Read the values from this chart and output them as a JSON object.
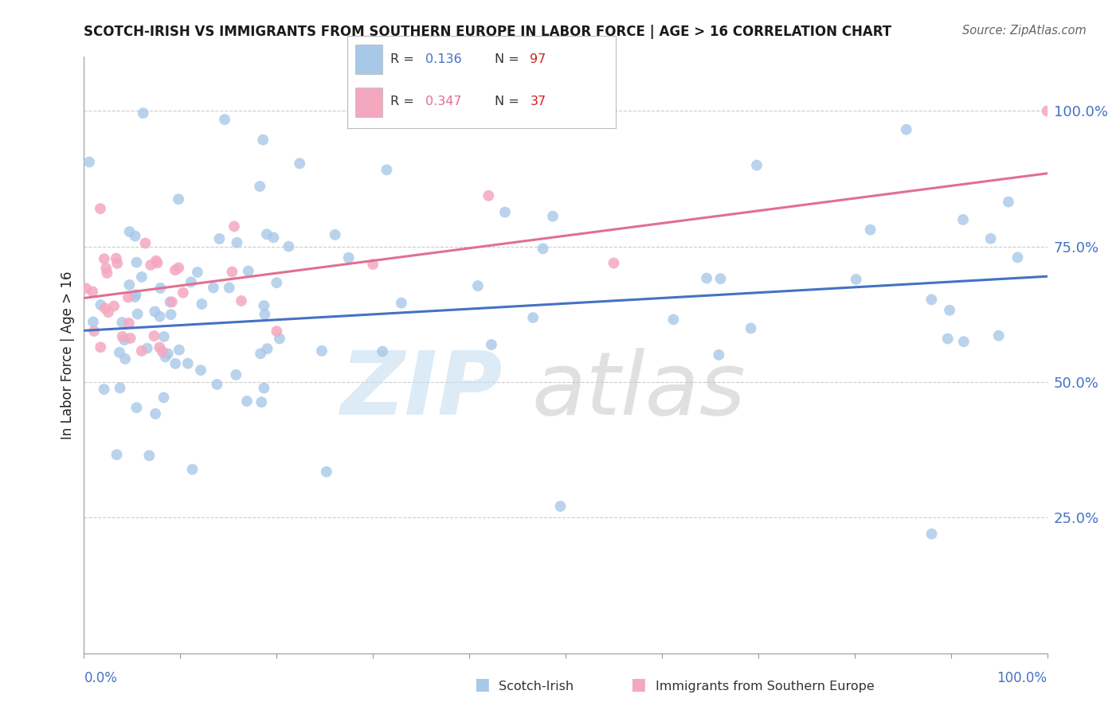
{
  "title": "SCOTCH-IRISH VS IMMIGRANTS FROM SOUTHERN EUROPE IN LABOR FORCE | AGE > 16 CORRELATION CHART",
  "source": "Source: ZipAtlas.com",
  "ylabel": "In Labor Force | Age > 16",
  "right_ytick_labels": [
    "100.0%",
    "75.0%",
    "50.0%",
    "25.0%"
  ],
  "right_ytick_vals": [
    1.0,
    0.75,
    0.5,
    0.25
  ],
  "legend_blue_R": "0.136",
  "legend_blue_N": "97",
  "legend_pink_R": "0.347",
  "legend_pink_N": "37",
  "background_color": "#ffffff",
  "grid_color": "#cccccc",
  "blue_marker_color": "#a8c8e8",
  "pink_marker_color": "#f4a8c0",
  "blue_line_color": "#4472c4",
  "pink_line_color": "#e07090",
  "right_tick_color": "#4472c4",
  "title_color": "#1a1a1a",
  "source_color": "#666666",
  "N_color": "#cc2222",
  "watermark_zip_color": "#c5dff0",
  "watermark_atlas_color": "#c8c8c8",
  "xlim": [
    0.0,
    1.0
  ],
  "ylim": [
    0.0,
    1.1
  ],
  "blue_line_y0": 0.595,
  "blue_line_y1": 0.695,
  "pink_line_y0": 0.655,
  "pink_line_y1": 0.885,
  "blue_seed": 10,
  "pink_seed": 20,
  "n_blue": 97,
  "n_pink": 37,
  "marker_size": 100
}
